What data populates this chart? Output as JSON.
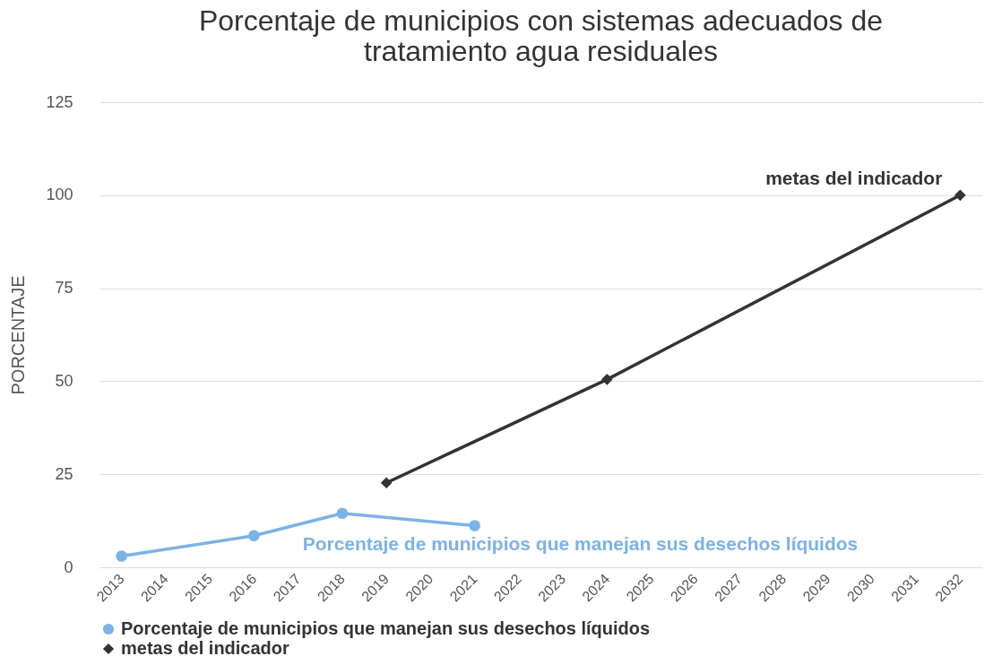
{
  "chart_data": {
    "type": "line",
    "title": [
      "Porcentaje de municipios con sistemas adecuados de",
      "tratamiento agua residuales"
    ],
    "ylabel": "PORCENTAJE",
    "categories": [
      "2013",
      "2014",
      "2015",
      "2016",
      "2017",
      "2018",
      "2019",
      "2020",
      "2021",
      "2022",
      "2023",
      "2024",
      "2025",
      "2026",
      "2027",
      "2028",
      "2029",
      "2030",
      "2031",
      "2032"
    ],
    "series": [
      {
        "name": "Porcentaje de municipios que manejan sus desechos líquidos",
        "color": "#7ab3e6",
        "marker": "circle",
        "values": [
          3,
          null,
          null,
          8.5,
          null,
          14.5,
          null,
          null,
          11.2,
          null,
          null,
          null,
          null,
          null,
          null,
          null,
          null,
          null,
          null,
          null
        ]
      },
      {
        "name": "metas del indicador",
        "color": "#333333",
        "marker": "diamond",
        "values": [
          null,
          null,
          null,
          null,
          null,
          null,
          22.7,
          null,
          null,
          null,
          null,
          50.5,
          null,
          null,
          null,
          null,
          null,
          null,
          null,
          100
        ]
      }
    ],
    "ylim": [
      0,
      125
    ],
    "yticks": [
      0,
      25,
      50,
      75,
      100,
      125
    ],
    "grid": "y",
    "legend": "bottom left"
  }
}
